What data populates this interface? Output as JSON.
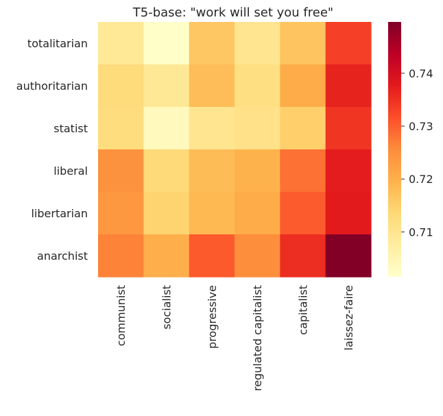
{
  "chart_data": {
    "type": "heatmap",
    "title": "T5-base: \"work will set you free\"",
    "rows": [
      "totalitarian",
      "authoritarian",
      "statist",
      "liberal",
      "libertarian",
      "anarchist"
    ],
    "columns": [
      "communist",
      "socialist",
      "progressive",
      "regulated capitalist",
      "capitalist",
      "laissez-faire"
    ],
    "values": [
      [
        0.7089,
        0.702,
        0.7163,
        0.7098,
        0.7168,
        0.7334
      ],
      [
        0.7129,
        0.7091,
        0.7178,
        0.7118,
        0.7206,
        0.7366
      ],
      [
        0.7122,
        0.7036,
        0.7098,
        0.711,
        0.7151,
        0.7345
      ],
      [
        0.7248,
        0.7131,
        0.718,
        0.7196,
        0.7283,
        0.7374
      ],
      [
        0.724,
        0.7143,
        0.7185,
        0.7206,
        0.7304,
        0.7377
      ],
      [
        0.7266,
        0.72,
        0.7305,
        0.7255,
        0.7355,
        0.7495
      ]
    ],
    "colorbar": {
      "min": 0.7015,
      "max": 0.7497,
      "ticks": [
        "0.71",
        "0.72",
        "0.73",
        "0.74"
      ],
      "tick_values": [
        0.71,
        0.72,
        0.73,
        0.74
      ],
      "colormap": [
        "#ffffcc",
        "#ffeda0",
        "#fed976",
        "#feb24c",
        "#fd8d3c",
        "#fc4e2a",
        "#e31a1c",
        "#bd0026",
        "#800026"
      ]
    }
  }
}
